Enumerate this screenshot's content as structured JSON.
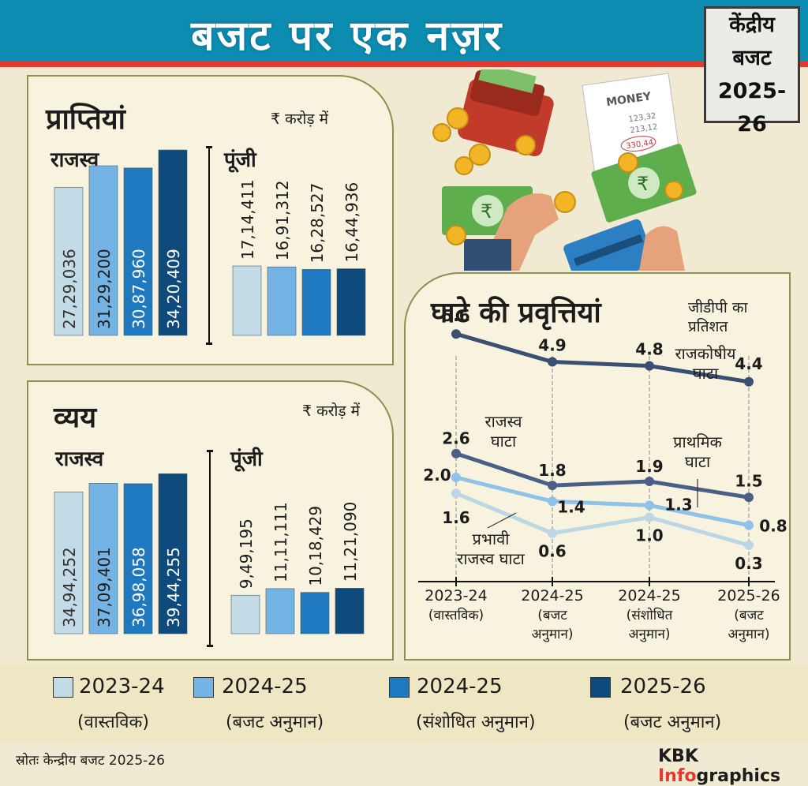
{
  "header": {
    "title": "बजट पर एक नज़र",
    "badge": [
      "केंद्रीय",
      "बजट",
      "2025-26"
    ]
  },
  "colors": {
    "c1": "#c2dbe6",
    "c2": "#74b3e3",
    "c3": "#1f79c0",
    "c4": "#0e4b7c",
    "deficit_fiscal": "#3a4f72",
    "deficit_revenue": "#4b5f86",
    "deficit_primary": "#8fc2e8",
    "deficit_effective": "#bcd6e6"
  },
  "receipts": {
    "title": "प्राप्तियां",
    "unit": "₹ करोड़ में",
    "revenue_label": "राजस्व",
    "capital_label": "पूंजी"
  },
  "expenditure": {
    "title": "व्यय",
    "unit": "₹ करोड़ में",
    "revenue_label": "राजस्व",
    "capital_label": "पूंजी"
  },
  "deficit": {
    "title": "घाटे की प्रवृत्तियां",
    "unit": [
      "जीडीपी का",
      "प्रतिशत"
    ]
  },
  "legend": [
    {
      "year": "2023-24",
      "sub": "(वास्तविक)"
    },
    {
      "year": "2024-25",
      "sub": "(बजट अनुमान)"
    },
    {
      "year": "2024-25",
      "sub": "(संशोधित अनुमान)"
    },
    {
      "year": "2025-26",
      "sub": "(बजट अनुमान)"
    }
  ],
  "source": "स्रोतः केन्द्रीय बजट 2025-26",
  "brand": {
    "a": "KBK ",
    "b": "Info",
    "c": "graphics"
  },
  "illustration": {
    "note_label": "MONEY",
    "note_lines": [
      "123,32",
      "213,12",
      "330,44"
    ],
    "currency_symbol": "₹"
  },
  "chart_data": [
    {
      "id": "receipts-revenue",
      "type": "bar",
      "title": "प्राप्तियां — राजस्व",
      "unit": "₹ करोड़",
      "categories": [
        "2023-24 (वास्तविक)",
        "2024-25 (बजट अनुमान)",
        "2024-25 (संशोधित अनुमान)",
        "2025-26 (बजट अनुमान)"
      ],
      "values": [
        2729036,
        3129200,
        3087960,
        3420409
      ],
      "labels": [
        "27,29,036",
        "31,29,200",
        "30,87,960",
        "34,20,409"
      ],
      "ylim": [
        0,
        3450000
      ]
    },
    {
      "id": "receipts-capital",
      "type": "bar",
      "title": "प्राप्तियां — पूंजी",
      "unit": "₹ करोड़",
      "categories": [
        "2023-24 (वास्तविक)",
        "2024-25 (बजट अनुमान)",
        "2024-25 (संशोधित अनुमान)",
        "2025-26 (बजट अनुमान)"
      ],
      "values": [
        1714411,
        1691312,
        1628527,
        1644936
      ],
      "labels": [
        "17,14,411",
        "16,91,312",
        "16,28,527",
        "16,44,936"
      ],
      "ylim": [
        0,
        5300000
      ]
    },
    {
      "id": "expenditure-revenue",
      "type": "bar",
      "title": "व्यय — राजस्व",
      "unit": "₹ करोड़",
      "categories": [
        "2023-24 (वास्तविक)",
        "2024-25 (बजट अनुमान)",
        "2024-25 (संशोधित अनुमान)",
        "2025-26 (बजट अनुमान)"
      ],
      "values": [
        3494252,
        3709401,
        3698058,
        3944255
      ],
      "labels": [
        "34,94,252",
        "37,09,401",
        "36,98,058",
        "39,44,255"
      ],
      "ylim": [
        0,
        3950000
      ]
    },
    {
      "id": "expenditure-capital",
      "type": "bar",
      "title": "व्यय — पूंजी",
      "unit": "₹ करोड़",
      "categories": [
        "2023-24 (वास्तविक)",
        "2024-25 (बजट अनुमान)",
        "2024-25 (संशोधित अनुमान)",
        "2025-26 (बजट अनुमान)"
      ],
      "values": [
        949195,
        1111111,
        1018429,
        1121090
      ],
      "labels": [
        "9,49,195",
        "11,11,111",
        "10,18,429",
        "11,21,090"
      ],
      "ylim": [
        0,
        3950000
      ]
    },
    {
      "id": "deficit-trends",
      "type": "line",
      "title": "घाटे की प्रवृत्तियां",
      "ylabel": "जीडीपी का प्रतिशत",
      "categories": [
        [
          "2023-24",
          "(वास्तविक)"
        ],
        [
          "2024-25",
          "(बजट",
          "अनुमान)"
        ],
        [
          "2024-25",
          "(संशोधित",
          "अनुमान)"
        ],
        [
          "2025-26",
          "(बजट",
          "अनुमान)"
        ]
      ],
      "ylim": [
        0,
        6
      ],
      "series": [
        {
          "name": "राजकोषीय घाटा",
          "name_lines": [
            "राजकोषीय",
            "घाटा"
          ],
          "values": [
            5.6,
            4.9,
            4.8,
            4.4
          ],
          "labels": [
            "5.6",
            "4.9",
            "4.8",
            "4.4"
          ]
        },
        {
          "name": "राजस्व घाटा",
          "name_lines": [
            "राजस्व",
            "घाटा"
          ],
          "values": [
            2.6,
            1.8,
            1.9,
            1.5
          ],
          "labels": [
            "2.6",
            "1.8",
            "1.9",
            "1.5"
          ]
        },
        {
          "name": "प्राथमिक घाटा",
          "name_lines": [
            "प्राथमिक",
            "घाटा"
          ],
          "values": [
            2.0,
            1.4,
            1.3,
            0.8
          ],
          "labels": [
            "2.0",
            "1.4",
            "1.3",
            "0.8"
          ]
        },
        {
          "name": "प्रभावी राजस्व घाटा",
          "name_lines": [
            "प्रभावी",
            "राजस्व घाटा"
          ],
          "values": [
            1.6,
            0.6,
            1.0,
            0.3
          ],
          "labels": [
            "1.6",
            "0.6",
            "1.0",
            "0.3"
          ]
        }
      ]
    }
  ]
}
